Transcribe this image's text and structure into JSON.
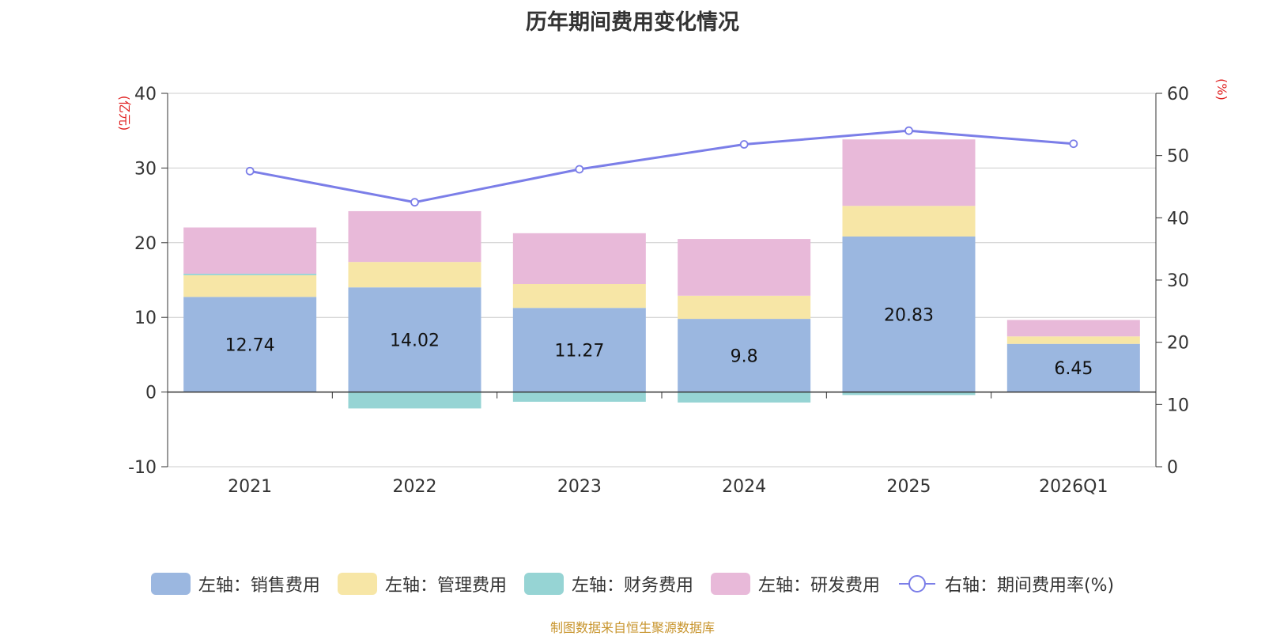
{
  "chart_data": {
    "type": "bar",
    "title": "历年期间费用变化情况",
    "categories": [
      "2021",
      "2022",
      "2023",
      "2024",
      "2025",
      "2026Q1"
    ],
    "series": [
      {
        "name": "左轴：销售费用",
        "axis": "left",
        "color": "#9bb7e0",
        "values": [
          12.74,
          14.02,
          11.27,
          9.8,
          20.83,
          6.45
        ]
      },
      {
        "name": "左轴：管理费用",
        "axis": "left",
        "color": "#f7e6a6",
        "values": [
          2.9,
          3.4,
          3.2,
          3.1,
          4.1,
          1.0
        ]
      },
      {
        "name": "左轴：财务费用",
        "axis": "left",
        "color": "#96d4d4",
        "values": [
          0.2,
          -2.2,
          -1.3,
          -1.4,
          -0.4,
          0.0
        ]
      },
      {
        "name": "左轴：研发费用",
        "axis": "left",
        "color": "#e8b9d9",
        "values": [
          6.2,
          6.8,
          6.8,
          7.6,
          8.9,
          2.2
        ]
      },
      {
        "name": "右轴：期间费用率(%)",
        "axis": "right",
        "type": "line",
        "color": "#7b7ee8",
        "values": [
          47.5,
          42.5,
          47.8,
          51.8,
          54.0,
          51.9
        ]
      }
    ],
    "value_labels": [
      "12.74",
      "14.02",
      "11.27",
      "9.8",
      "20.83",
      "6.45"
    ],
    "y_left": {
      "label": "(亿元)",
      "ylim": [
        -10,
        40
      ],
      "ticks": [
        "-10",
        "0",
        "10",
        "20",
        "30",
        "40"
      ]
    },
    "y_right": {
      "label": "(%)",
      "ylim": [
        0,
        60
      ],
      "ticks": [
        "0",
        "10",
        "20",
        "30",
        "40",
        "50",
        "60"
      ]
    },
    "grid": true,
    "legend_position": "bottom"
  },
  "source_note": "制图数据来自恒生聚源数据库"
}
